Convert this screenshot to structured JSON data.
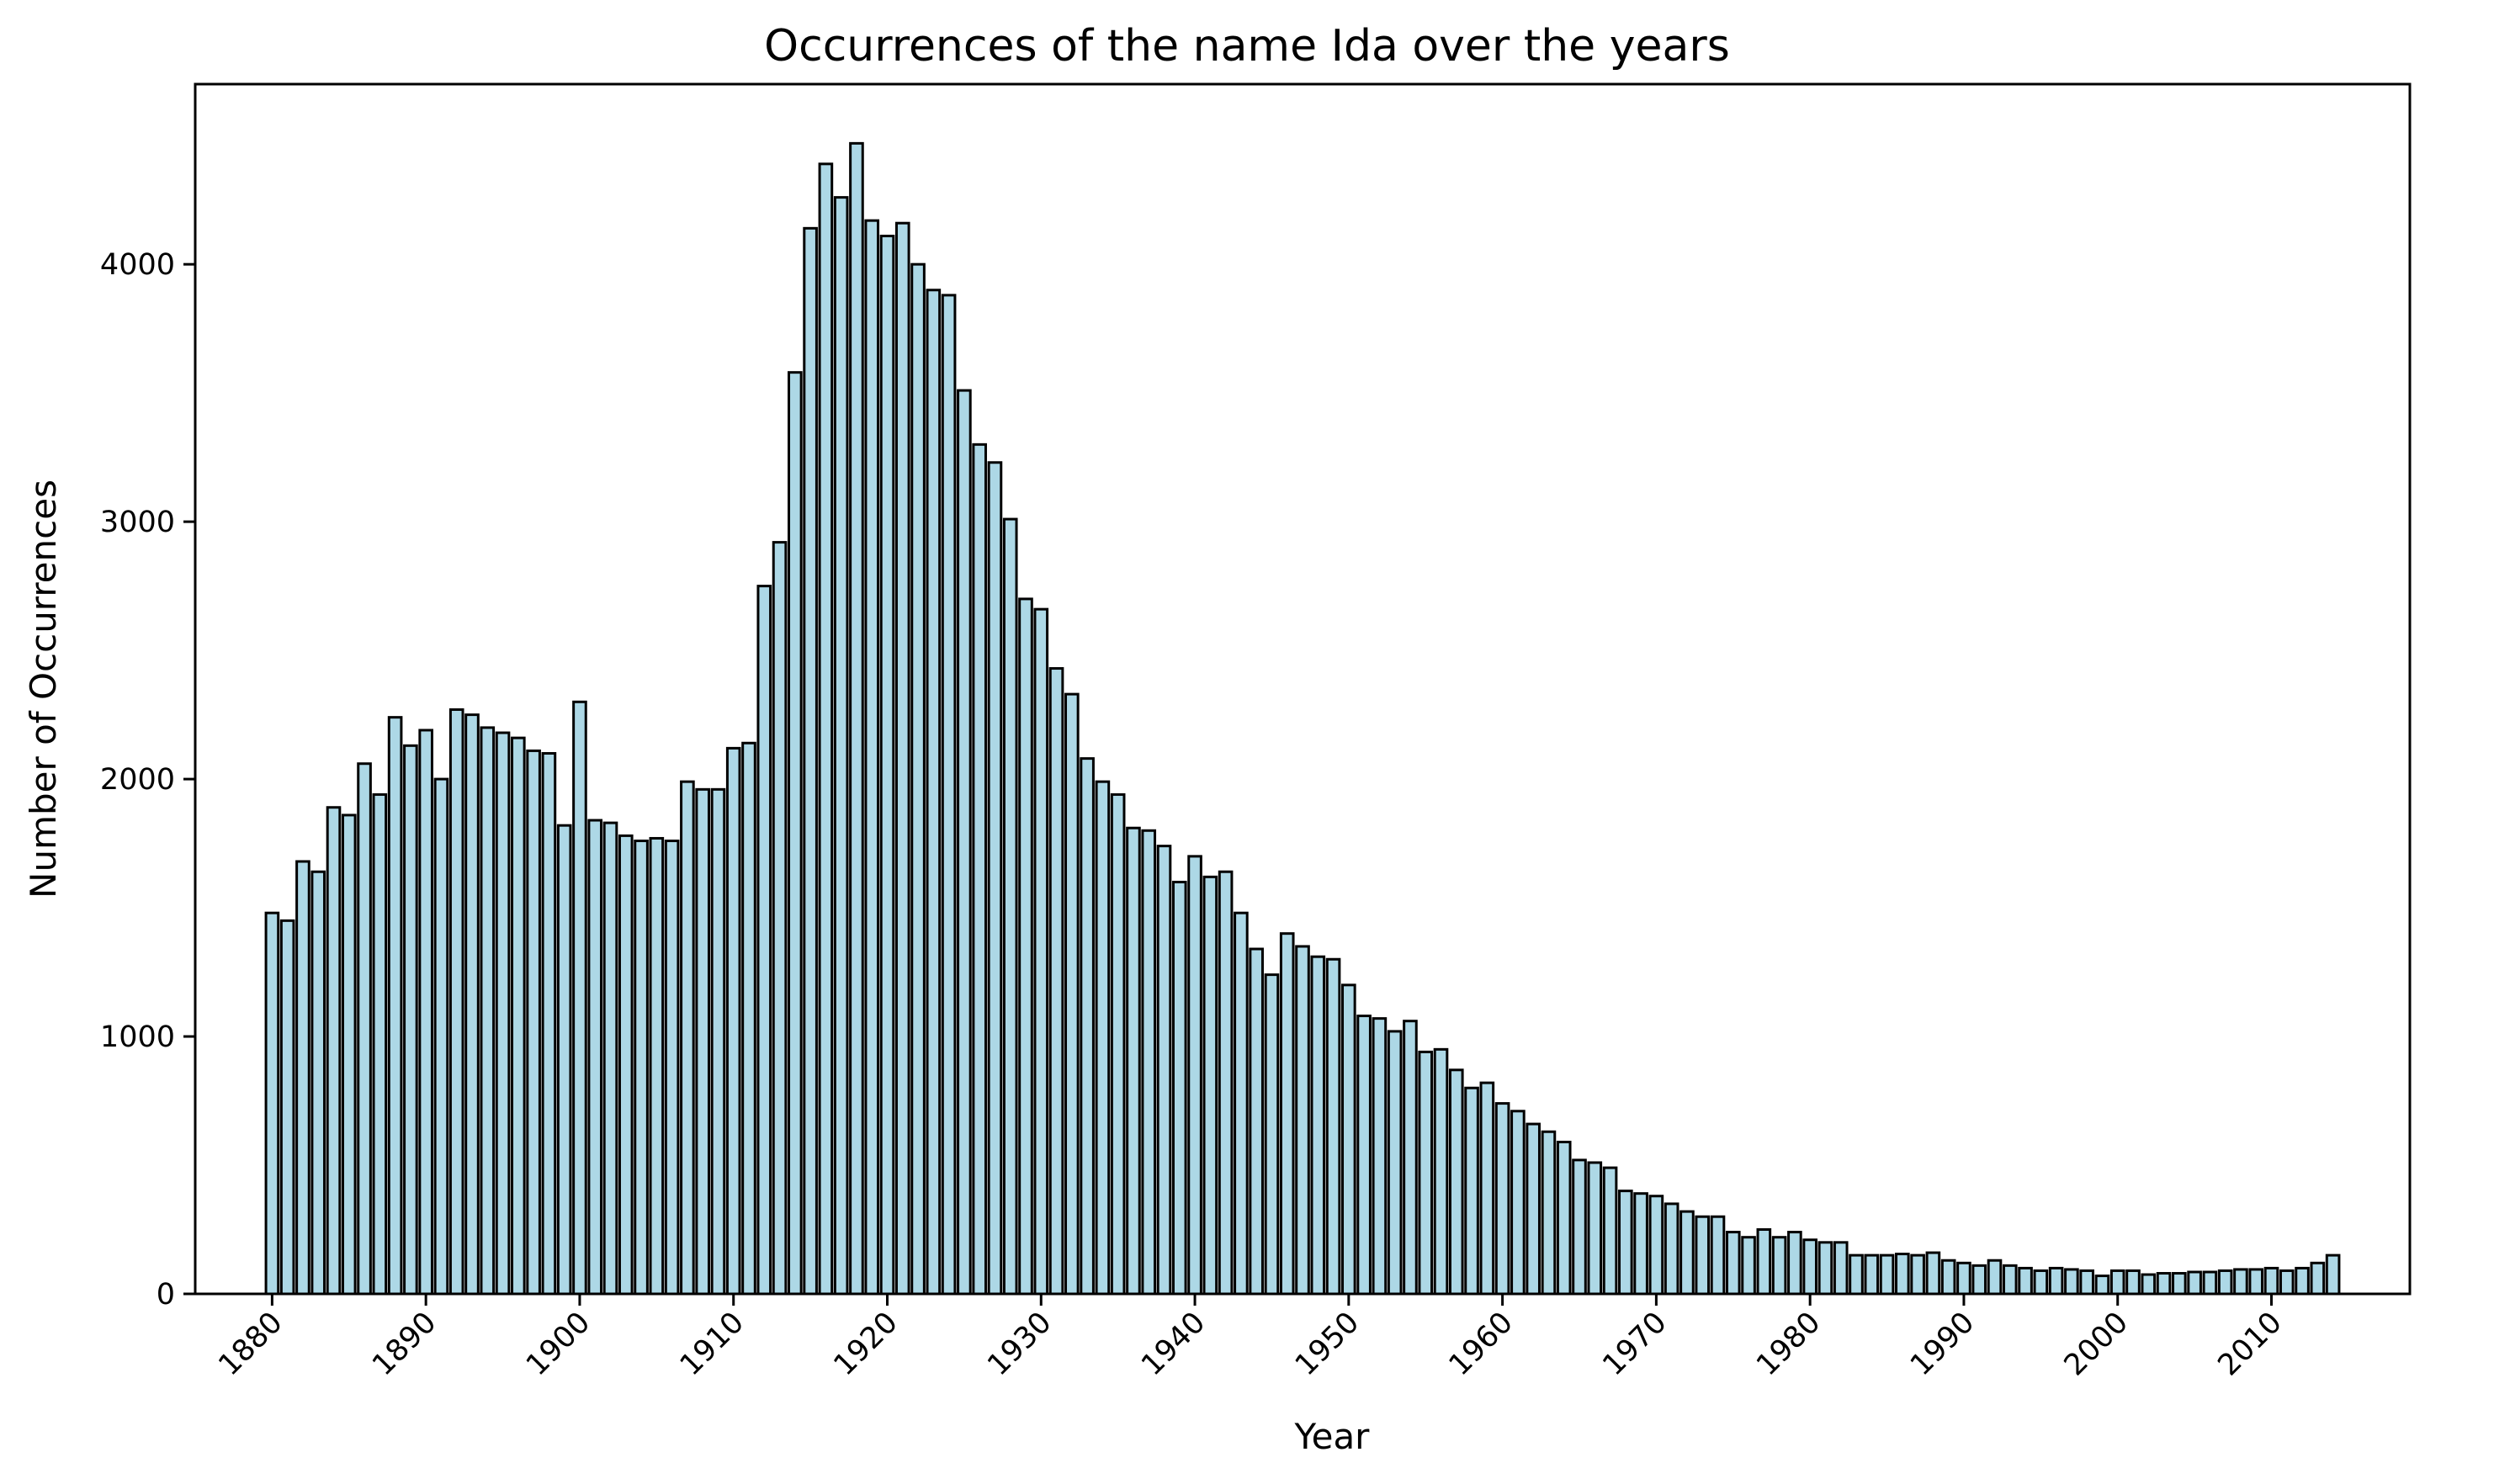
{
  "chart_data": {
    "type": "bar",
    "title": "Occurrences of the name Ida over the years",
    "xlabel": "Year",
    "ylabel": "Number of Occurrences",
    "bar_color": "#add8e6",
    "edge_color": "#000000",
    "xlim": [
      1875,
      2019
    ],
    "ylim": [
      0,
      4700
    ],
    "x_ticks": [
      1880,
      1890,
      1900,
      1910,
      1920,
      1930,
      1940,
      1950,
      1960,
      1970,
      1980,
      1990,
      2000,
      2010
    ],
    "x_tick_labels": [
      "1880",
      "1890",
      "1900",
      "1910",
      "1920",
      "1930",
      "1940",
      "1950",
      "1960",
      "1970",
      "1980",
      "1990",
      "2000",
      "2010"
    ],
    "y_ticks": [
      0,
      1000,
      2000,
      3000,
      4000
    ],
    "y_tick_labels": [
      "0",
      "1000",
      "2000",
      "3000",
      "4000"
    ],
    "grid": false,
    "x": [
      1880,
      1881,
      1882,
      1883,
      1884,
      1885,
      1886,
      1887,
      1888,
      1889,
      1890,
      1891,
      1892,
      1893,
      1894,
      1895,
      1896,
      1897,
      1898,
      1899,
      1900,
      1901,
      1902,
      1903,
      1904,
      1905,
      1906,
      1907,
      1908,
      1909,
      1910,
      1911,
      1912,
      1913,
      1914,
      1915,
      1916,
      1917,
      1918,
      1919,
      1920,
      1921,
      1922,
      1923,
      1924,
      1925,
      1926,
      1927,
      1928,
      1929,
      1930,
      1931,
      1932,
      1933,
      1934,
      1935,
      1936,
      1937,
      1938,
      1939,
      1940,
      1941,
      1942,
      1943,
      1944,
      1945,
      1946,
      1947,
      1948,
      1949,
      1950,
      1951,
      1952,
      1953,
      1954,
      1955,
      1956,
      1957,
      1958,
      1959,
      1960,
      1961,
      1962,
      1963,
      1964,
      1965,
      1966,
      1967,
      1968,
      1969,
      1970,
      1971,
      1972,
      1973,
      1974,
      1975,
      1976,
      1977,
      1978,
      1979,
      1980,
      1981,
      1982,
      1983,
      1984,
      1985,
      1986,
      1987,
      1988,
      1989,
      1990,
      1991,
      1992,
      1993,
      1994,
      1995,
      1996,
      1997,
      1998,
      1999,
      2000,
      2001,
      2002,
      2003,
      2004,
      2005,
      2006,
      2007,
      2008,
      2009,
      2010,
      2011,
      2012,
      2013,
      2014
    ],
    "values": [
      1480,
      1450,
      1680,
      1640,
      1890,
      1860,
      2060,
      1940,
      2240,
      2130,
      2190,
      2000,
      2270,
      2250,
      2200,
      2180,
      2160,
      2110,
      2100,
      1820,
      2300,
      1840,
      1830,
      1780,
      1760,
      1770,
      1760,
      1990,
      1960,
      1960,
      2120,
      2140,
      2750,
      2920,
      3580,
      4140,
      4390,
      4260,
      4470,
      4170,
      4110,
      4160,
      4000,
      3900,
      3880,
      3510,
      3300,
      3230,
      3010,
      2700,
      2660,
      2430,
      2330,
      2080,
      1990,
      1940,
      1810,
      1800,
      1740,
      1600,
      1700,
      1620,
      1640,
      1480,
      1340,
      1240,
      1400,
      1350,
      1310,
      1300,
      1200,
      1080,
      1070,
      1020,
      1060,
      940,
      950,
      870,
      800,
      820,
      740,
      710,
      660,
      630,
      590,
      520,
      510,
      490,
      400,
      390,
      380,
      350,
      320,
      300,
      300,
      240,
      220,
      250,
      220,
      240,
      210,
      200,
      200,
      150,
      150,
      150,
      155,
      150,
      160,
      130,
      120,
      110,
      130,
      110,
      100,
      90,
      100,
      95,
      90,
      70,
      90,
      90,
      75,
      80,
      80,
      85,
      85,
      90,
      95,
      95,
      100,
      90,
      100,
      120,
      150
    ]
  }
}
